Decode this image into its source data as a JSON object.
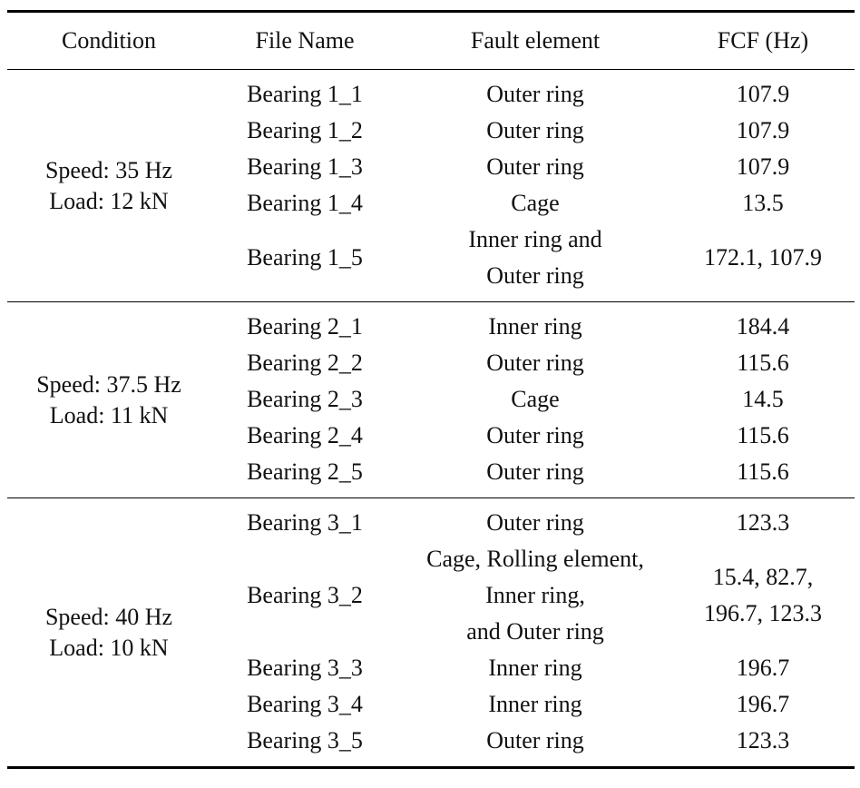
{
  "headers": [
    "Condition",
    "File Name",
    "Fault element",
    "FCF (Hz)"
  ],
  "groups": [
    {
      "condition": [
        "Speed: 35 Hz",
        "Load: 12 kN"
      ],
      "rows": [
        {
          "file": "Bearing 1_1",
          "fault": [
            "Outer ring"
          ],
          "fcf": [
            "107.9"
          ]
        },
        {
          "file": "Bearing 1_2",
          "fault": [
            "Outer ring"
          ],
          "fcf": [
            "107.9"
          ]
        },
        {
          "file": "Bearing 1_3",
          "fault": [
            "Outer ring"
          ],
          "fcf": [
            "107.9"
          ]
        },
        {
          "file": "Bearing 1_4",
          "fault": [
            "Cage"
          ],
          "fcf": [
            "13.5"
          ]
        },
        {
          "file": "Bearing 1_5",
          "fault": [
            "Inner ring and",
            "Outer ring"
          ],
          "fcf": [
            "172.1, 107.9"
          ]
        }
      ]
    },
    {
      "condition": [
        "Speed: 37.5 Hz",
        "Load: 11 kN"
      ],
      "rows": [
        {
          "file": "Bearing 2_1",
          "fault": [
            "Inner ring"
          ],
          "fcf": [
            "184.4"
          ]
        },
        {
          "file": "Bearing 2_2",
          "fault": [
            "Outer ring"
          ],
          "fcf": [
            "115.6"
          ]
        },
        {
          "file": "Bearing 2_3",
          "fault": [
            "Cage"
          ],
          "fcf": [
            "14.5"
          ]
        },
        {
          "file": "Bearing 2_4",
          "fault": [
            "Outer ring"
          ],
          "fcf": [
            "115.6"
          ]
        },
        {
          "file": "Bearing 2_5",
          "fault": [
            "Outer ring"
          ],
          "fcf": [
            "115.6"
          ]
        }
      ]
    },
    {
      "condition": [
        "Speed: 40 Hz",
        "Load: 10 kN"
      ],
      "rows": [
        {
          "file": "Bearing 3_1",
          "fault": [
            "Outer ring"
          ],
          "fcf": [
            "123.3"
          ]
        },
        {
          "file": "Bearing 3_2",
          "fault": [
            "Cage, Rolling element,",
            "Inner ring,",
            "and Outer ring"
          ],
          "fcf": [
            "15.4, 82.7,",
            "196.7, 123.3"
          ]
        },
        {
          "file": "Bearing 3_3",
          "fault": [
            "Inner ring"
          ],
          "fcf": [
            "196.7"
          ]
        },
        {
          "file": "Bearing 3_4",
          "fault": [
            "Inner ring"
          ],
          "fcf": [
            "196.7"
          ]
        },
        {
          "file": "Bearing 3_5",
          "fault": [
            "Outer ring"
          ],
          "fcf": [
            "123.3"
          ]
        }
      ]
    }
  ]
}
